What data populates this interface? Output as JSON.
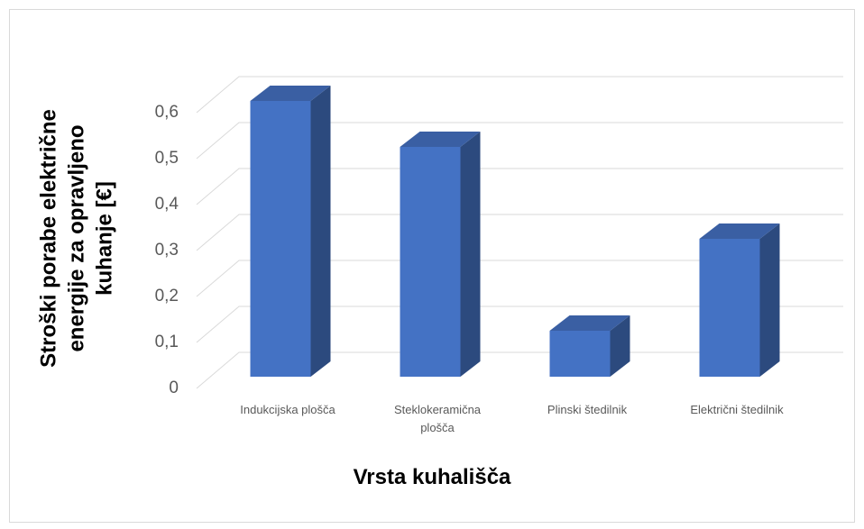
{
  "chart_data": {
    "type": "bar3d",
    "categories": [
      "Indukcijska plošča",
      "Steklokeramična plošča",
      "Plinski štedilnik",
      "Električni štedilnik"
    ],
    "values": [
      0.6,
      0.5,
      0.1,
      0.3
    ],
    "color": "#4472c4",
    "xlabel": "Vrsta kuhališča",
    "ylabel": [
      "Stroški porabe električne",
      "energije za opravljeno",
      "kuhanje [€]"
    ],
    "ylim": [
      0,
      0.6
    ],
    "yticks": [
      0,
      {
        "value": 0.1,
        "label": "0,1"
      },
      {
        "value": 0.2,
        "label": "0,2"
      },
      {
        "value": 0.3,
        "label": "0,3"
      },
      {
        "value": 0.4,
        "label": "0,4"
      },
      {
        "value": 0.5,
        "label": "0,5"
      },
      {
        "value": 0.6,
        "label": "0,6"
      }
    ],
    "grid": true
  }
}
